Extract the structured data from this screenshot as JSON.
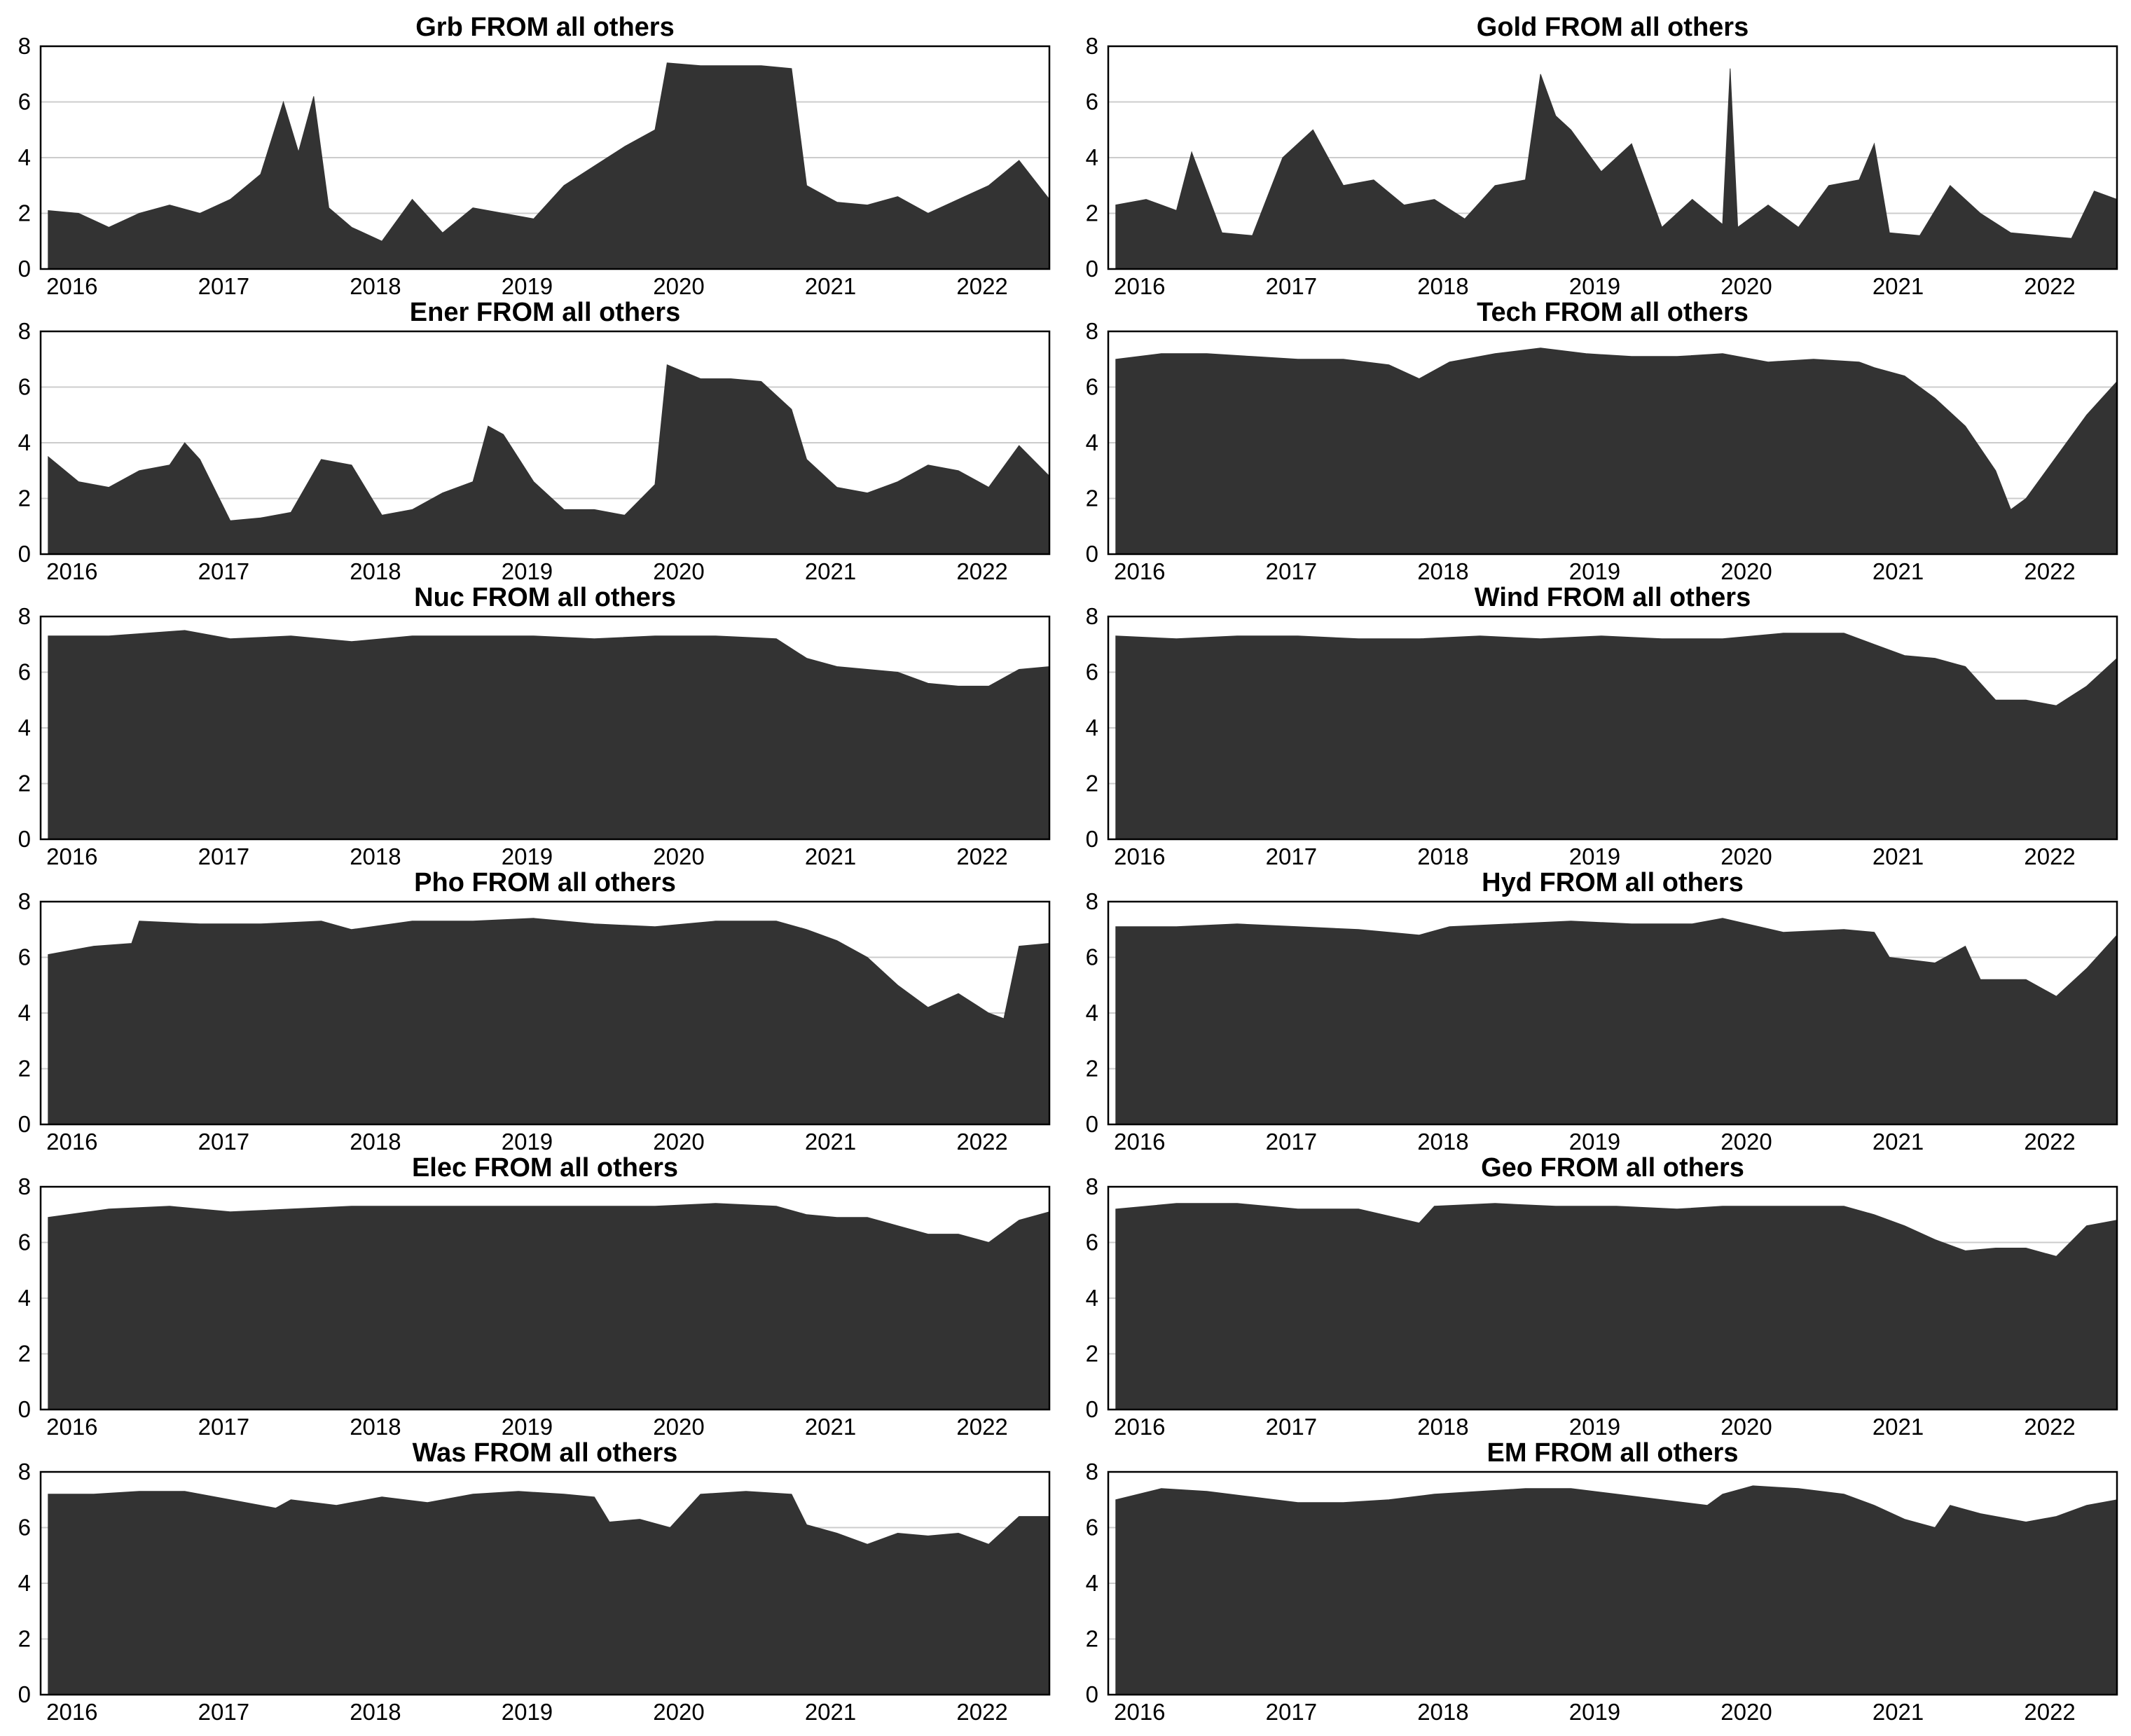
{
  "figure": {
    "background": "#ffffff",
    "area_color": "#333333",
    "grid_color": "#cccccc"
  },
  "chart_data": [
    {
      "type": "area",
      "title": "Grb FROM all others",
      "x_ticks": [
        "2016",
        "2017",
        "2018",
        "2019",
        "2020",
        "2021",
        "2022"
      ],
      "y_ticks": [
        "0",
        "2",
        "4",
        "6",
        "8"
      ],
      "ylim": [
        0,
        8
      ],
      "xlim": [
        2015.95,
        2022.6
      ],
      "grid": "horizontal",
      "x": [
        2016.0,
        2016.2,
        2016.4,
        2016.6,
        2016.8,
        2017.0,
        2017.2,
        2017.4,
        2017.55,
        2017.65,
        2017.75,
        2017.85,
        2018.0,
        2018.2,
        2018.4,
        2018.6,
        2018.8,
        2019.0,
        2019.2,
        2019.4,
        2019.6,
        2019.8,
        2020.0,
        2020.08,
        2020.3,
        2020.5,
        2020.7,
        2020.9,
        2021.0,
        2021.2,
        2021.4,
        2021.6,
        2021.8,
        2022.0,
        2022.2,
        2022.4,
        2022.6
      ],
      "y": [
        2.1,
        2.0,
        1.5,
        2.0,
        2.3,
        2.0,
        2.5,
        3.4,
        6.0,
        4.2,
        6.2,
        2.2,
        1.5,
        1.0,
        2.5,
        1.3,
        2.2,
        2.0,
        1.8,
        3.0,
        3.7,
        4.4,
        5.0,
        7.4,
        7.3,
        7.3,
        7.3,
        7.2,
        3.0,
        2.4,
        2.3,
        2.6,
        2.0,
        2.5,
        3.0,
        3.9,
        2.5
      ]
    },
    {
      "type": "area",
      "title": "Gold FROM all others",
      "x_ticks": [
        "2016",
        "2017",
        "2018",
        "2019",
        "2020",
        "2021",
        "2022"
      ],
      "y_ticks": [
        "0",
        "2",
        "4",
        "6",
        "8"
      ],
      "ylim": [
        0,
        8
      ],
      "xlim": [
        2015.95,
        2022.6
      ],
      "grid": "horizontal",
      "x": [
        2016.0,
        2016.2,
        2016.4,
        2016.5,
        2016.7,
        2016.9,
        2017.1,
        2017.3,
        2017.5,
        2017.7,
        2017.9,
        2018.1,
        2018.3,
        2018.5,
        2018.7,
        2018.8,
        2018.9,
        2019.0,
        2019.2,
        2019.4,
        2019.6,
        2019.8,
        2020.0,
        2020.05,
        2020.1,
        2020.3,
        2020.5,
        2020.7,
        2020.9,
        2021.0,
        2021.1,
        2021.3,
        2021.5,
        2021.7,
        2021.9,
        2022.1,
        2022.3,
        2022.45,
        2022.6
      ],
      "y": [
        2.3,
        2.5,
        2.1,
        4.2,
        1.3,
        1.2,
        4.0,
        5.0,
        3.0,
        3.2,
        2.3,
        2.5,
        1.8,
        3.0,
        3.2,
        7.0,
        5.5,
        5.0,
        3.5,
        4.5,
        1.5,
        2.5,
        1.6,
        7.2,
        1.5,
        2.3,
        1.5,
        3.0,
        3.2,
        4.5,
        1.3,
        1.2,
        3.0,
        2.0,
        1.3,
        1.2,
        1.1,
        2.8,
        2.5
      ]
    },
    {
      "type": "area",
      "title": "Ener FROM all others",
      "x_ticks": [
        "2016",
        "2017",
        "2018",
        "2019",
        "2020",
        "2021",
        "2022"
      ],
      "y_ticks": [
        "0",
        "2",
        "4",
        "6",
        "8"
      ],
      "ylim": [
        0,
        8
      ],
      "xlim": [
        2015.95,
        2022.6
      ],
      "grid": "horizontal",
      "x": [
        2016.0,
        2016.2,
        2016.4,
        2016.6,
        2016.8,
        2016.9,
        2017.0,
        2017.2,
        2017.4,
        2017.6,
        2017.8,
        2018.0,
        2018.2,
        2018.4,
        2018.6,
        2018.8,
        2018.9,
        2019.0,
        2019.2,
        2019.4,
        2019.6,
        2019.8,
        2020.0,
        2020.08,
        2020.3,
        2020.5,
        2020.7,
        2020.9,
        2021.0,
        2021.2,
        2021.4,
        2021.6,
        2021.8,
        2022.0,
        2022.2,
        2022.4,
        2022.6
      ],
      "y": [
        3.5,
        2.6,
        2.4,
        3.0,
        3.2,
        4.0,
        3.4,
        1.2,
        1.3,
        1.5,
        3.4,
        3.2,
        1.4,
        1.6,
        2.2,
        2.6,
        4.6,
        4.3,
        2.6,
        1.6,
        1.6,
        1.4,
        2.5,
        6.8,
        6.3,
        6.3,
        6.2,
        5.2,
        3.4,
        2.4,
        2.2,
        2.6,
        3.2,
        3.0,
        2.4,
        3.9,
        2.8
      ]
    },
    {
      "type": "area",
      "title": "Tech FROM all others",
      "x_ticks": [
        "2016",
        "2017",
        "2018",
        "2019",
        "2020",
        "2021",
        "2022"
      ],
      "y_ticks": [
        "0",
        "2",
        "4",
        "6",
        "8"
      ],
      "ylim": [
        0,
        8
      ],
      "xlim": [
        2015.95,
        2022.6
      ],
      "grid": "horizontal",
      "x": [
        2016.0,
        2016.3,
        2016.6,
        2016.9,
        2017.2,
        2017.5,
        2017.8,
        2018.0,
        2018.2,
        2018.5,
        2018.8,
        2019.1,
        2019.4,
        2019.7,
        2020.0,
        2020.3,
        2020.6,
        2020.9,
        2021.0,
        2021.2,
        2021.4,
        2021.6,
        2021.8,
        2021.9,
        2022.0,
        2022.2,
        2022.4,
        2022.6
      ],
      "y": [
        7.0,
        7.2,
        7.2,
        7.1,
        7.0,
        7.0,
        6.8,
        6.3,
        6.9,
        7.2,
        7.4,
        7.2,
        7.1,
        7.1,
        7.2,
        6.9,
        7.0,
        6.9,
        6.7,
        6.4,
        5.6,
        4.6,
        3.0,
        1.6,
        2.0,
        3.5,
        5.0,
        6.2
      ]
    },
    {
      "type": "area",
      "title": "Nuc FROM all others",
      "x_ticks": [
        "2016",
        "2017",
        "2018",
        "2019",
        "2020",
        "2021",
        "2022"
      ],
      "y_ticks": [
        "0",
        "2",
        "4",
        "6",
        "8"
      ],
      "ylim": [
        0,
        8
      ],
      "xlim": [
        2015.95,
        2022.6
      ],
      "grid": "horizontal",
      "x": [
        2016.0,
        2016.4,
        2016.9,
        2017.2,
        2017.6,
        2018.0,
        2018.4,
        2018.8,
        2019.2,
        2019.6,
        2020.0,
        2020.4,
        2020.8,
        2021.0,
        2021.2,
        2021.4,
        2021.6,
        2021.8,
        2022.0,
        2022.2,
        2022.4,
        2022.6
      ],
      "y": [
        7.3,
        7.3,
        7.5,
        7.2,
        7.3,
        7.1,
        7.3,
        7.3,
        7.3,
        7.2,
        7.3,
        7.3,
        7.2,
        6.5,
        6.2,
        6.1,
        6.0,
        5.6,
        5.5,
        5.5,
        6.1,
        6.2
      ]
    },
    {
      "type": "area",
      "title": "Wind FROM all others",
      "x_ticks": [
        "2016",
        "2017",
        "2018",
        "2019",
        "2020",
        "2021",
        "2022"
      ],
      "y_ticks": [
        "0",
        "2",
        "4",
        "6",
        "8"
      ],
      "ylim": [
        0,
        8
      ],
      "xlim": [
        2015.95,
        2022.6
      ],
      "grid": "horizontal",
      "x": [
        2016.0,
        2016.4,
        2016.8,
        2017.2,
        2017.6,
        2018.0,
        2018.4,
        2018.8,
        2019.2,
        2019.6,
        2020.0,
        2020.4,
        2020.8,
        2021.0,
        2021.2,
        2021.4,
        2021.6,
        2021.8,
        2022.0,
        2022.2,
        2022.4,
        2022.6
      ],
      "y": [
        7.3,
        7.2,
        7.3,
        7.3,
        7.2,
        7.2,
        7.3,
        7.2,
        7.3,
        7.2,
        7.2,
        7.4,
        7.4,
        7.0,
        6.6,
        6.5,
        6.2,
        5.0,
        5.0,
        4.8,
        5.5,
        6.5
      ]
    },
    {
      "type": "area",
      "title": "Pho FROM all others",
      "x_ticks": [
        "2016",
        "2017",
        "2018",
        "2019",
        "2020",
        "2021",
        "2022"
      ],
      "y_ticks": [
        "0",
        "2",
        "4",
        "6",
        "8"
      ],
      "ylim": [
        0,
        8
      ],
      "xlim": [
        2015.95,
        2022.6
      ],
      "grid": "horizontal",
      "x": [
        2016.0,
        2016.3,
        2016.55,
        2016.6,
        2017.0,
        2017.4,
        2017.8,
        2018.0,
        2018.4,
        2018.8,
        2019.2,
        2019.6,
        2020.0,
        2020.4,
        2020.8,
        2021.0,
        2021.2,
        2021.4,
        2021.6,
        2021.8,
        2022.0,
        2022.2,
        2022.3,
        2022.4,
        2022.6
      ],
      "y": [
        6.1,
        6.4,
        6.5,
        7.3,
        7.2,
        7.2,
        7.3,
        7.0,
        7.3,
        7.3,
        7.4,
        7.2,
        7.1,
        7.3,
        7.3,
        7.0,
        6.6,
        6.0,
        5.0,
        4.2,
        4.7,
        4.0,
        3.8,
        6.4,
        6.5
      ]
    },
    {
      "type": "area",
      "title": "Hyd FROM all others",
      "x_ticks": [
        "2016",
        "2017",
        "2018",
        "2019",
        "2020",
        "2021",
        "2022"
      ],
      "y_ticks": [
        "0",
        "2",
        "4",
        "6",
        "8"
      ],
      "ylim": [
        0,
        8
      ],
      "xlim": [
        2015.95,
        2022.6
      ],
      "grid": "horizontal",
      "x": [
        2016.0,
        2016.4,
        2016.8,
        2017.2,
        2017.6,
        2018.0,
        2018.2,
        2018.6,
        2019.0,
        2019.4,
        2019.8,
        2020.0,
        2020.4,
        2020.8,
        2021.0,
        2021.1,
        2021.4,
        2021.6,
        2021.7,
        2022.0,
        2022.2,
        2022.4,
        2022.6
      ],
      "y": [
        7.1,
        7.1,
        7.2,
        7.1,
        7.0,
        6.8,
        7.1,
        7.2,
        7.3,
        7.2,
        7.2,
        7.4,
        6.9,
        7.0,
        6.9,
        6.0,
        5.8,
        6.4,
        5.2,
        5.2,
        4.6,
        5.6,
        6.8
      ]
    },
    {
      "type": "area",
      "title": "Elec FROM all others",
      "x_ticks": [
        "2016",
        "2017",
        "2018",
        "2019",
        "2020",
        "2021",
        "2022"
      ],
      "y_ticks": [
        "0",
        "2",
        "4",
        "6",
        "8"
      ],
      "ylim": [
        0,
        8
      ],
      "xlim": [
        2015.95,
        2022.6
      ],
      "grid": "horizontal",
      "x": [
        2016.0,
        2016.4,
        2016.8,
        2017.2,
        2017.6,
        2018.0,
        2018.4,
        2018.8,
        2019.2,
        2019.6,
        2020.0,
        2020.4,
        2020.8,
        2021.0,
        2021.2,
        2021.4,
        2021.6,
        2021.8,
        2022.0,
        2022.2,
        2022.4,
        2022.6
      ],
      "y": [
        6.9,
        7.2,
        7.3,
        7.1,
        7.2,
        7.3,
        7.3,
        7.3,
        7.3,
        7.3,
        7.3,
        7.4,
        7.3,
        7.0,
        6.9,
        6.9,
        6.6,
        6.3,
        6.3,
        6.0,
        6.8,
        7.1
      ]
    },
    {
      "type": "area",
      "title": "Geo FROM all others",
      "x_ticks": [
        "2016",
        "2017",
        "2018",
        "2019",
        "2020",
        "2021",
        "2022"
      ],
      "y_ticks": [
        "0",
        "2",
        "4",
        "6",
        "8"
      ],
      "ylim": [
        0,
        8
      ],
      "xlim": [
        2015.95,
        2022.6
      ],
      "grid": "horizontal",
      "x": [
        2016.0,
        2016.4,
        2016.8,
        2017.2,
        2017.6,
        2018.0,
        2018.1,
        2018.5,
        2018.9,
        2019.3,
        2019.7,
        2020.0,
        2020.4,
        2020.8,
        2021.0,
        2021.2,
        2021.4,
        2021.6,
        2021.8,
        2022.0,
        2022.2,
        2022.4,
        2022.6
      ],
      "y": [
        7.2,
        7.4,
        7.4,
        7.2,
        7.2,
        6.7,
        7.3,
        7.4,
        7.3,
        7.3,
        7.2,
        7.3,
        7.3,
        7.3,
        7.0,
        6.6,
        6.1,
        5.7,
        5.8,
        5.8,
        5.5,
        6.6,
        6.8
      ]
    },
    {
      "type": "area",
      "title": "Was FROM all others",
      "x_ticks": [
        "2016",
        "2017",
        "2018",
        "2019",
        "2020",
        "2021",
        "2022"
      ],
      "y_ticks": [
        "0",
        "2",
        "4",
        "6",
        "8"
      ],
      "ylim": [
        0,
        8
      ],
      "xlim": [
        2015.95,
        2022.6
      ],
      "grid": "horizontal",
      "x": [
        2016.0,
        2016.3,
        2016.6,
        2016.9,
        2017.2,
        2017.5,
        2017.6,
        2017.9,
        2018.2,
        2018.5,
        2018.8,
        2019.1,
        2019.4,
        2019.6,
        2019.7,
        2019.9,
        2020.1,
        2020.3,
        2020.6,
        2020.9,
        2021.0,
        2021.2,
        2021.4,
        2021.6,
        2021.8,
        2022.0,
        2022.2,
        2022.4,
        2022.6
      ],
      "y": [
        7.2,
        7.2,
        7.3,
        7.3,
        7.0,
        6.7,
        7.0,
        6.8,
        7.1,
        6.9,
        7.2,
        7.3,
        7.2,
        7.1,
        6.2,
        6.3,
        6.0,
        7.2,
        7.3,
        7.2,
        6.1,
        5.8,
        5.4,
        5.8,
        5.7,
        5.8,
        5.4,
        6.4,
        6.4
      ]
    },
    {
      "type": "area",
      "title": "EM FROM all others",
      "x_ticks": [
        "2016",
        "2017",
        "2018",
        "2019",
        "2020",
        "2021",
        "2022"
      ],
      "y_ticks": [
        "0",
        "2",
        "4",
        "6",
        "8"
      ],
      "ylim": [
        0,
        8
      ],
      "xlim": [
        2015.95,
        2022.6
      ],
      "grid": "horizontal",
      "x": [
        2016.0,
        2016.3,
        2016.6,
        2016.9,
        2017.2,
        2017.5,
        2017.8,
        2018.1,
        2018.4,
        2018.7,
        2019.0,
        2019.3,
        2019.6,
        2019.9,
        2020.0,
        2020.2,
        2020.5,
        2020.8,
        2021.0,
        2021.2,
        2021.4,
        2021.5,
        2021.7,
        2022.0,
        2022.2,
        2022.4,
        2022.6
      ],
      "y": [
        7.0,
        7.4,
        7.3,
        7.1,
        6.9,
        6.9,
        7.0,
        7.2,
        7.3,
        7.4,
        7.4,
        7.2,
        7.0,
        6.8,
        7.2,
        7.5,
        7.4,
        7.2,
        6.8,
        6.3,
        6.0,
        6.8,
        6.5,
        6.2,
        6.4,
        6.8,
        7.0
      ]
    }
  ]
}
